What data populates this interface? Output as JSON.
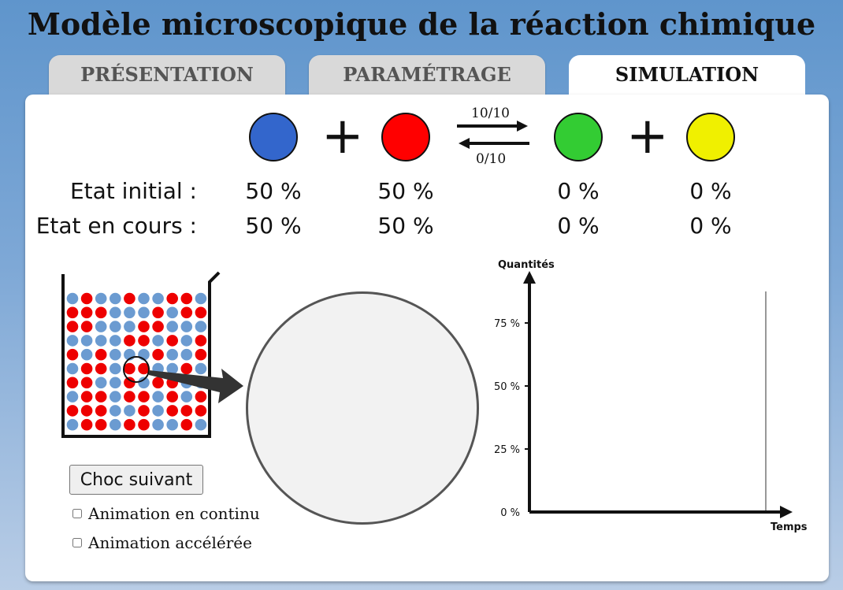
{
  "title": "Modèle microscopique de la réaction chimique",
  "tabs": [
    {
      "label": "PRÉSENTATION",
      "active": false
    },
    {
      "label": "PARAMÉTRAGE",
      "active": false
    },
    {
      "label": "SIMULATION",
      "active": true
    }
  ],
  "reaction": {
    "species_colors": [
      "#3366cc",
      "#ff0000",
      "#33cc33",
      "#f0f000"
    ],
    "plus_symbol": "+",
    "forward_rate": "10/10",
    "backward_rate": "0/10"
  },
  "states": {
    "initial": {
      "label": "Etat initial :",
      "values": [
        "50 %",
        "50 %",
        "0 %",
        "0 %"
      ]
    },
    "current": {
      "label": "Etat en cours :",
      "values": [
        "50 %",
        "50 %",
        "0 %",
        "0 %"
      ]
    }
  },
  "beaker": {
    "colors": {
      "blue": "#6b9bd1",
      "red": "#ee0000"
    },
    "grid": [
      "BRBBRBBRRB",
      "RRRBBBRBRR",
      "RRBBBRRBBB",
      "BBBBRRBRBR",
      "RBRBBBRBBR",
      "BRRBRRBBRB",
      "RRBBRBRRBB",
      "BRRBRRBRBR",
      "RRRBBRBRRR",
      "BRRBRRBBRB"
    ]
  },
  "controls": {
    "next_shock_label": "Choc suivant",
    "continuous_label": "Animation en continu",
    "continuous_checked": false,
    "fast_label": "Animation accélérée",
    "fast_checked": false
  },
  "chart": {
    "ylabel": "Quantités",
    "xlabel": "Temps",
    "yticks": [
      "75 %",
      "50 %",
      "25 %",
      "0 %"
    ]
  },
  "chart_data": {
    "type": "line",
    "xlabel": "Temps",
    "ylabel": "Quantités",
    "ylim": [
      0,
      100
    ],
    "yticks": [
      "75 %",
      "50 %",
      "25 %",
      "0 %"
    ],
    "series": []
  }
}
